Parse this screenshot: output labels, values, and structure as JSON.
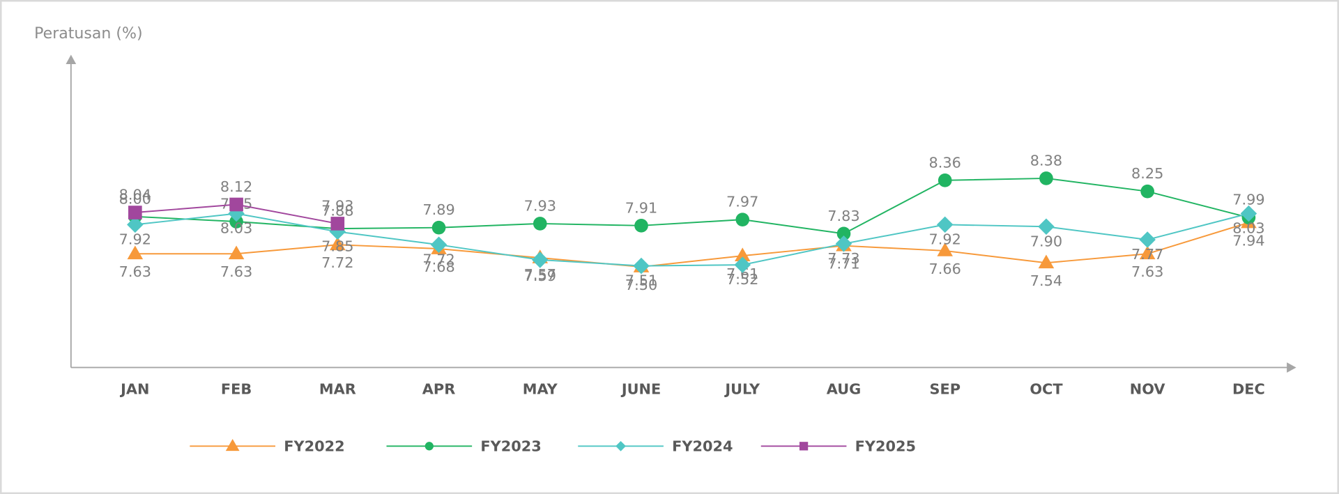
{
  "chart_data": {
    "type": "line",
    "y_axis_label": "Peratusan (%)",
    "categories": [
      "JAN",
      "FEB",
      "MAR",
      "APR",
      "MAY",
      "JUNE",
      "JULY",
      "AUG",
      "SEP",
      "OCT",
      "NOV",
      "DEC"
    ],
    "ylim": [
      6.5,
      9.6
    ],
    "series": [
      {
        "name": "FY2022",
        "color": "#f7993a",
        "marker": "triangle",
        "values": [
          7.63,
          7.63,
          7.72,
          7.68,
          7.59,
          7.5,
          7.61,
          7.71,
          7.66,
          7.54,
          7.63,
          7.94
        ],
        "value_labels": [
          "7.63",
          "7.63",
          "7.72",
          "7.68",
          "7.59",
          "7.50",
          "7.61",
          "7.71",
          "7.66",
          "7.54",
          "7.63",
          "7.94"
        ]
      },
      {
        "name": "FY2023",
        "color": "#21b462",
        "marker": "circle",
        "values": [
          8.0,
          7.95,
          7.88,
          7.89,
          7.93,
          7.91,
          7.97,
          7.83,
          8.36,
          8.38,
          8.25,
          7.99
        ],
        "value_labels": [
          "8.00",
          "7.95",
          "7.88",
          "7.89",
          "7.93",
          "7.91",
          "7.97",
          "7.83",
          "8.36",
          "8.38",
          "8.25",
          "7.99"
        ]
      },
      {
        "name": "FY2024",
        "color": "#4fc6c4",
        "marker": "diamond",
        "values": [
          7.92,
          8.03,
          7.85,
          7.72,
          7.57,
          7.51,
          7.52,
          7.73,
          7.92,
          7.9,
          7.77,
          8.03
        ],
        "value_labels": [
          "7.92",
          "8.03",
          "7.85",
          "7.72",
          "7.57",
          "7.51",
          "7.52",
          "7.73",
          "7.92",
          "7.90",
          "7.77",
          "8.03"
        ]
      },
      {
        "name": "FY2025",
        "color": "#a1479d",
        "marker": "square",
        "values": [
          8.04,
          8.12,
          7.93,
          null,
          null,
          null,
          null,
          null,
          null,
          null,
          null,
          null
        ],
        "value_labels": [
          "8.04",
          "8.12",
          "7.93",
          null,
          null,
          null,
          null,
          null,
          null,
          null,
          null,
          null
        ]
      }
    ]
  }
}
